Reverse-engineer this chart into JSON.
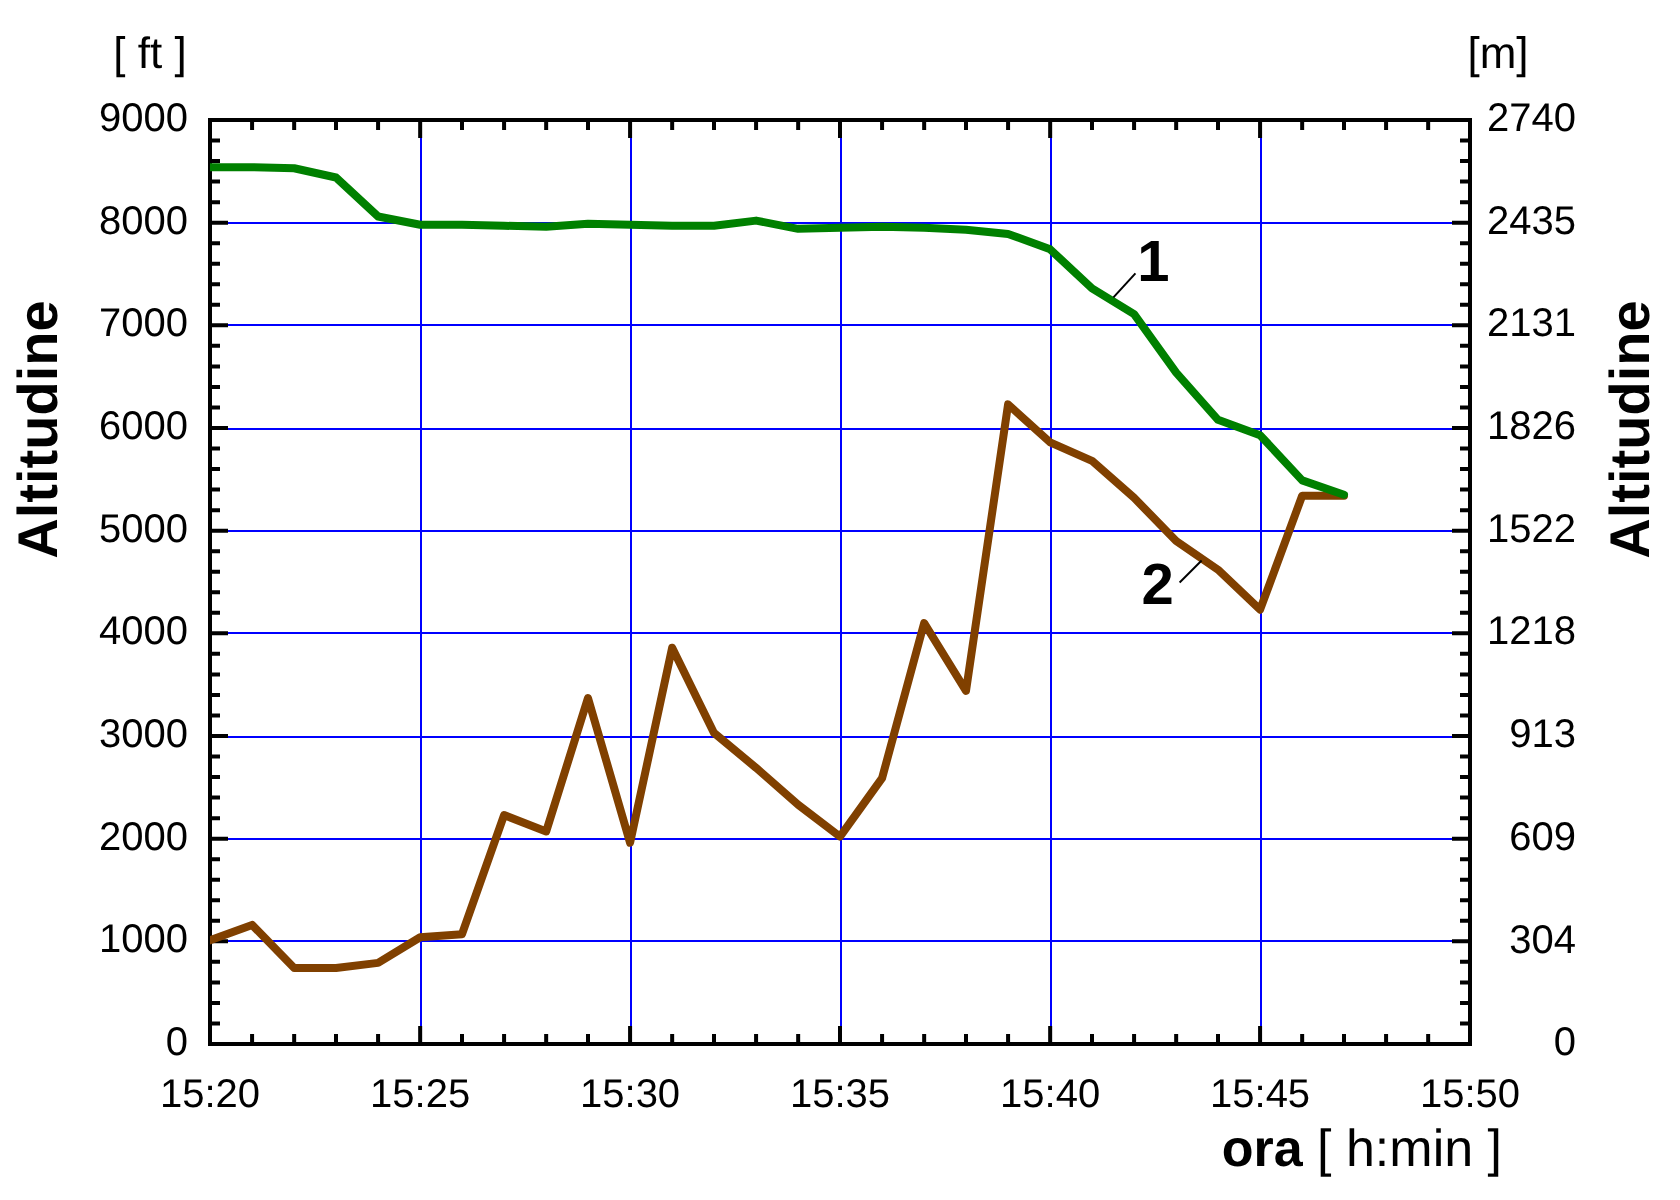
{
  "chart_data": {
    "type": "line",
    "xlabel": "ora [ h:min ]",
    "ylabel": "Altitudine",
    "y2label": "Altitudine",
    "annotations": [
      "[ ft ]",
      "[m]"
    ],
    "x": [
      15.3333,
      15.35,
      15.3667,
      15.3833,
      15.4,
      15.4167,
      15.4333,
      15.45,
      15.4667,
      15.4833,
      15.5,
      15.5167,
      15.5333,
      15.55,
      15.5667,
      15.5833,
      15.6,
      15.6167,
      15.6333,
      15.65,
      15.6667,
      15.6833,
      15.7,
      15.7167,
      15.7333,
      15.75,
      15.7667,
      15.7833
    ],
    "series": [
      {
        "name": "1",
        "color": "#008000",
        "values": [
          8540,
          8540,
          8530,
          8440,
          8060,
          7980,
          7980,
          7970,
          7960,
          7990,
          7980,
          7970,
          7970,
          8020,
          7940,
          7950,
          7960,
          7950,
          7930,
          7890,
          7740,
          7360,
          7110,
          6540,
          6080,
          5930,
          5490,
          5350
        ]
      },
      {
        "name": "2",
        "color": "#804000",
        "values": [
          1010,
          1160,
          740,
          740,
          790,
          1040,
          1070,
          2230,
          2070,
          3370,
          1960,
          3860,
          3030,
          2690,
          2330,
          2020,
          2590,
          4100,
          3440,
          6230,
          5860,
          5680,
          5320,
          4900,
          4620,
          4230,
          5340,
          5340
        ]
      }
    ],
    "xlim": [
      15.3333,
      15.8333
    ],
    "xticks": [
      {
        "value": 15.3333,
        "label": "15:20"
      },
      {
        "value": 15.35,
        "label": null
      },
      {
        "value": 15.3667,
        "label": null
      },
      {
        "value": 15.3833,
        "label": null
      },
      {
        "value": 15.4,
        "label": null
      },
      {
        "value": 15.4167,
        "label": "15:25"
      },
      {
        "value": 15.4333,
        "label": null
      },
      {
        "value": 15.45,
        "label": null
      },
      {
        "value": 15.4667,
        "label": null
      },
      {
        "value": 15.4833,
        "label": null
      },
      {
        "value": 15.5,
        "label": "15:30"
      },
      {
        "value": 15.5167,
        "label": null
      },
      {
        "value": 15.5333,
        "label": null
      },
      {
        "value": 15.55,
        "label": null
      },
      {
        "value": 15.5667,
        "label": null
      },
      {
        "value": 15.5833,
        "label": "15:35"
      },
      {
        "value": 15.6,
        "label": null
      },
      {
        "value": 15.6167,
        "label": null
      },
      {
        "value": 15.6333,
        "label": null
      },
      {
        "value": 15.65,
        "label": null
      },
      {
        "value": 15.6667,
        "label": "15:40"
      },
      {
        "value": 15.6833,
        "label": null
      },
      {
        "value": 15.7,
        "label": null
      },
      {
        "value": 15.7167,
        "label": null
      },
      {
        "value": 15.7333,
        "label": null
      },
      {
        "value": 15.75,
        "label": "15:45"
      },
      {
        "value": 15.7667,
        "label": null
      },
      {
        "value": 15.7833,
        "label": null
      },
      {
        "value": 15.8,
        "label": null
      },
      {
        "value": 15.8167,
        "label": null
      },
      {
        "value": 15.8333,
        "label": "15:50"
      }
    ],
    "ylim": [
      0,
      9000
    ],
    "yticks": [
      0,
      {
        "value": 200,
        "label": null
      },
      {
        "value": 400,
        "label": null
      },
      {
        "value": 600,
        "label": null
      },
      {
        "value": 800,
        "label": null
      },
      1000,
      {
        "value": 1200,
        "label": null
      },
      {
        "value": 1400,
        "label": null
      },
      {
        "value": 1600,
        "label": null
      },
      {
        "value": 1800,
        "label": null
      },
      2000,
      {
        "value": 2200,
        "label": null
      },
      {
        "value": 2400,
        "label": null
      },
      {
        "value": 2600,
        "label": null
      },
      {
        "value": 2800,
        "label": null
      },
      3000,
      {
        "value": 3200,
        "label": null
      },
      {
        "value": 3400,
        "label": null
      },
      {
        "value": 3600,
        "label": null
      },
      {
        "value": 3800,
        "label": null
      },
      4000,
      {
        "value": 4200,
        "label": null
      },
      {
        "value": 4400,
        "label": null
      },
      {
        "value": 4600,
        "label": null
      },
      {
        "value": 4800,
        "label": null
      },
      5000,
      {
        "value": 5200,
        "label": null
      },
      {
        "value": 5400,
        "label": null
      },
      {
        "value": 5600,
        "label": null
      },
      {
        "value": 5800,
        "label": null
      },
      6000,
      {
        "value": 6200,
        "label": null
      },
      {
        "value": 6400,
        "label": null
      },
      {
        "value": 6600,
        "label": null
      },
      {
        "value": 6800,
        "label": null
      },
      7000,
      {
        "value": 7200,
        "label": null
      },
      {
        "value": 7400,
        "label": null
      },
      {
        "value": 7600,
        "label": null
      },
      {
        "value": 7800,
        "label": null
      },
      8000,
      {
        "value": 8200,
        "label": null
      },
      {
        "value": 8400,
        "label": null
      },
      {
        "value": 8600,
        "label": null
      },
      {
        "value": 8800,
        "label": null
      },
      9000
    ],
    "y2lim": [
      0,
      2740
    ],
    "y2ticks": [
      0,
      304,
      609,
      913,
      1218,
      1522,
      1826,
      2131,
      2435,
      2740
    ],
    "grid": true
  }
}
